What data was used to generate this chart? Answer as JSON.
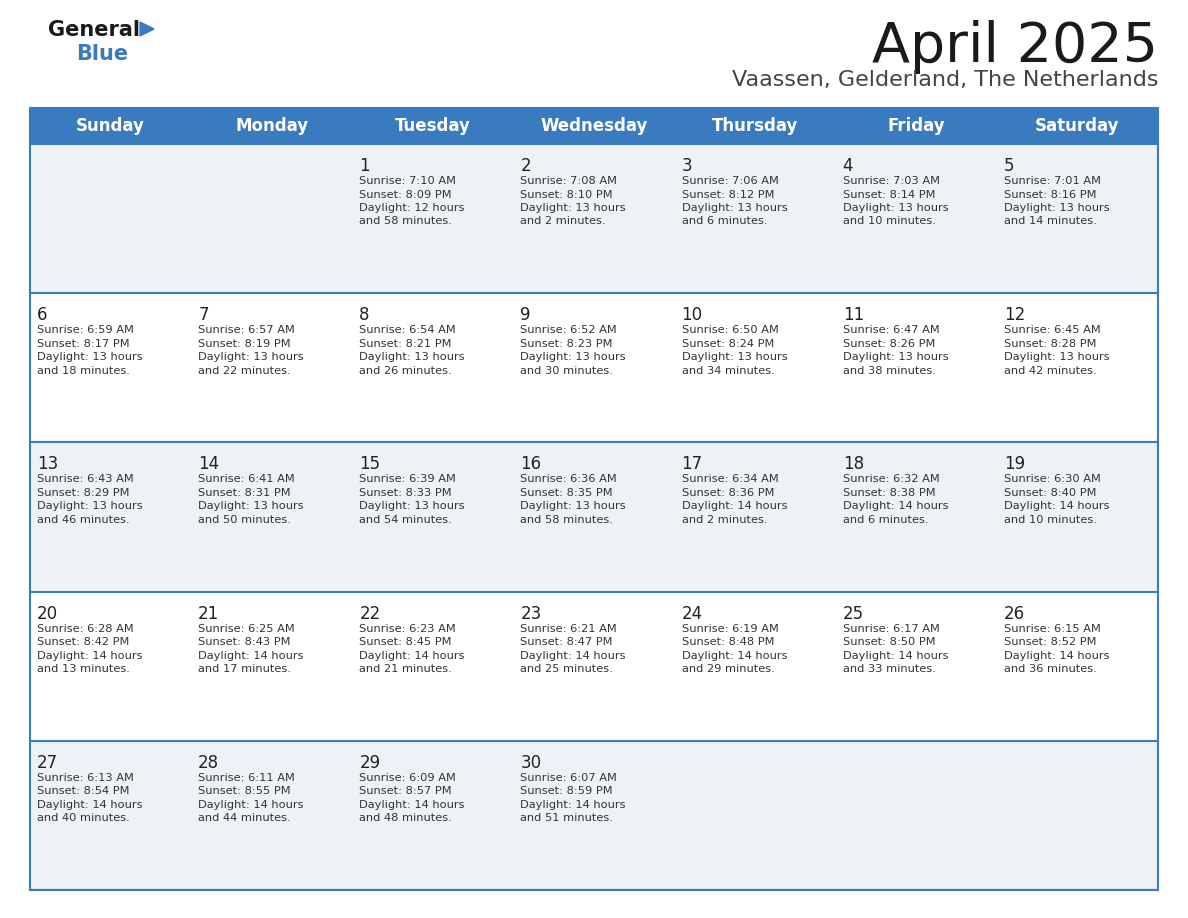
{
  "title": "April 2025",
  "subtitle": "Vaassen, Gelderland, The Netherlands",
  "header_bg_color": "#3a7abf",
  "header_text_color": "#ffffff",
  "row_bg_even": "#eef2f7",
  "row_bg_odd": "#ffffff",
  "divider_color": "#3a7abf",
  "cell_text_color": "#333333",
  "day_num_color": "#222222",
  "day_headers": [
    "Sunday",
    "Monday",
    "Tuesday",
    "Wednesday",
    "Thursday",
    "Friday",
    "Saturday"
  ],
  "calendar": [
    [
      {
        "day": "",
        "sunrise": "",
        "sunset": "",
        "daylight_h": "",
        "daylight_m": ""
      },
      {
        "day": "",
        "sunrise": "",
        "sunset": "",
        "daylight_h": "",
        "daylight_m": ""
      },
      {
        "day": "1",
        "sunrise": "7:10 AM",
        "sunset": "8:09 PM",
        "daylight_h": "12",
        "daylight_m": "58"
      },
      {
        "day": "2",
        "sunrise": "7:08 AM",
        "sunset": "8:10 PM",
        "daylight_h": "13",
        "daylight_m": "2"
      },
      {
        "day": "3",
        "sunrise": "7:06 AM",
        "sunset": "8:12 PM",
        "daylight_h": "13",
        "daylight_m": "6"
      },
      {
        "day": "4",
        "sunrise": "7:03 AM",
        "sunset": "8:14 PM",
        "daylight_h": "13",
        "daylight_m": "10"
      },
      {
        "day": "5",
        "sunrise": "7:01 AM",
        "sunset": "8:16 PM",
        "daylight_h": "13",
        "daylight_m": "14"
      }
    ],
    [
      {
        "day": "6",
        "sunrise": "6:59 AM",
        "sunset": "8:17 PM",
        "daylight_h": "13",
        "daylight_m": "18"
      },
      {
        "day": "7",
        "sunrise": "6:57 AM",
        "sunset": "8:19 PM",
        "daylight_h": "13",
        "daylight_m": "22"
      },
      {
        "day": "8",
        "sunrise": "6:54 AM",
        "sunset": "8:21 PM",
        "daylight_h": "13",
        "daylight_m": "26"
      },
      {
        "day": "9",
        "sunrise": "6:52 AM",
        "sunset": "8:23 PM",
        "daylight_h": "13",
        "daylight_m": "30"
      },
      {
        "day": "10",
        "sunrise": "6:50 AM",
        "sunset": "8:24 PM",
        "daylight_h": "13",
        "daylight_m": "34"
      },
      {
        "day": "11",
        "sunrise": "6:47 AM",
        "sunset": "8:26 PM",
        "daylight_h": "13",
        "daylight_m": "38"
      },
      {
        "day": "12",
        "sunrise": "6:45 AM",
        "sunset": "8:28 PM",
        "daylight_h": "13",
        "daylight_m": "42"
      }
    ],
    [
      {
        "day": "13",
        "sunrise": "6:43 AM",
        "sunset": "8:29 PM",
        "daylight_h": "13",
        "daylight_m": "46"
      },
      {
        "day": "14",
        "sunrise": "6:41 AM",
        "sunset": "8:31 PM",
        "daylight_h": "13",
        "daylight_m": "50"
      },
      {
        "day": "15",
        "sunrise": "6:39 AM",
        "sunset": "8:33 PM",
        "daylight_h": "13",
        "daylight_m": "54"
      },
      {
        "day": "16",
        "sunrise": "6:36 AM",
        "sunset": "8:35 PM",
        "daylight_h": "13",
        "daylight_m": "58"
      },
      {
        "day": "17",
        "sunrise": "6:34 AM",
        "sunset": "8:36 PM",
        "daylight_h": "14",
        "daylight_m": "2"
      },
      {
        "day": "18",
        "sunrise": "6:32 AM",
        "sunset": "8:38 PM",
        "daylight_h": "14",
        "daylight_m": "6"
      },
      {
        "day": "19",
        "sunrise": "6:30 AM",
        "sunset": "8:40 PM",
        "daylight_h": "14",
        "daylight_m": "10"
      }
    ],
    [
      {
        "day": "20",
        "sunrise": "6:28 AM",
        "sunset": "8:42 PM",
        "daylight_h": "14",
        "daylight_m": "13"
      },
      {
        "day": "21",
        "sunrise": "6:25 AM",
        "sunset": "8:43 PM",
        "daylight_h": "14",
        "daylight_m": "17"
      },
      {
        "day": "22",
        "sunrise": "6:23 AM",
        "sunset": "8:45 PM",
        "daylight_h": "14",
        "daylight_m": "21"
      },
      {
        "day": "23",
        "sunrise": "6:21 AM",
        "sunset": "8:47 PM",
        "daylight_h": "14",
        "daylight_m": "25"
      },
      {
        "day": "24",
        "sunrise": "6:19 AM",
        "sunset": "8:48 PM",
        "daylight_h": "14",
        "daylight_m": "29"
      },
      {
        "day": "25",
        "sunrise": "6:17 AM",
        "sunset": "8:50 PM",
        "daylight_h": "14",
        "daylight_m": "33"
      },
      {
        "day": "26",
        "sunrise": "6:15 AM",
        "sunset": "8:52 PM",
        "daylight_h": "14",
        "daylight_m": "36"
      }
    ],
    [
      {
        "day": "27",
        "sunrise": "6:13 AM",
        "sunset": "8:54 PM",
        "daylight_h": "14",
        "daylight_m": "40"
      },
      {
        "day": "28",
        "sunrise": "6:11 AM",
        "sunset": "8:55 PM",
        "daylight_h": "14",
        "daylight_m": "44"
      },
      {
        "day": "29",
        "sunrise": "6:09 AM",
        "sunset": "8:57 PM",
        "daylight_h": "14",
        "daylight_m": "48"
      },
      {
        "day": "30",
        "sunrise": "6:07 AM",
        "sunset": "8:59 PM",
        "daylight_h": "14",
        "daylight_m": "51"
      },
      {
        "day": "",
        "sunrise": "",
        "sunset": "",
        "daylight_h": "",
        "daylight_m": ""
      },
      {
        "day": "",
        "sunrise": "",
        "sunset": "",
        "daylight_h": "",
        "daylight_m": ""
      },
      {
        "day": "",
        "sunrise": "",
        "sunset": "",
        "daylight_h": "",
        "daylight_m": ""
      }
    ]
  ],
  "logo_general_color": "#1a1a1a",
  "logo_blue_color": "#3a7abf",
  "logo_triangle_color": "#3a7abf"
}
